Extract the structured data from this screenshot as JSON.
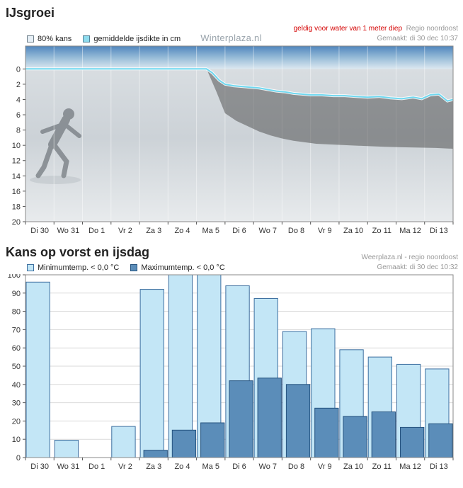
{
  "ice_chart": {
    "title": "IJsgroei",
    "watermark": "Winterplaza.nl",
    "notice": "geldig voor water van 1 meter diep",
    "region": "Regio noordoost",
    "made": "Gemaakt: di 30 dec 10:37",
    "legend": [
      {
        "label": "80% kans",
        "swatch": "#e6eff6",
        "border": "#6f7f8a"
      },
      {
        "label": "gemiddelde ijsdikte in cm",
        "swatch": "#8edcee",
        "border": "#558196"
      }
    ]
  },
  "frost_chart": {
    "title": "Kans op vorst en ijsdag",
    "source": "Weerplaza.nl - regio noordoost",
    "made": "Gemaakt: di 30 dec 10:32",
    "legend": [
      {
        "label": "Minimumtemp. < 0,0 °C",
        "swatch": "#c3e6f6",
        "border": "#3d6fa0"
      },
      {
        "label": "Maximumtemp. < 0,0 °C",
        "swatch": "#5b8db9",
        "border": "#24527e"
      }
    ]
  },
  "chart_data": [
    {
      "type": "line",
      "title": "IJsgroei",
      "note": "geldig voor water van 1 meter diep",
      "categories": [
        "Di 30",
        "Wo 31",
        "Do 1",
        "Vr 2",
        "Za 3",
        "Zo 4",
        "Ma 5",
        "Di 6",
        "Wo 7",
        "Do 8",
        "Vr 9",
        "Za 10",
        "Zo 11",
        "Ma 12",
        "Di 13"
      ],
      "ylim": [
        -3,
        20
      ],
      "y_ticks": [
        0,
        2,
        4,
        6,
        8,
        10,
        12,
        14,
        16,
        18,
        20
      ],
      "y_axis_inverted": true,
      "legend_position": "top",
      "series": [
        {
          "name": "gemiddelde ijsdikte in cm",
          "color": "#6fd8f0",
          "unit": "cm",
          "points": [
            [
              0,
              0
            ],
            [
              6.35,
              0
            ],
            [
              6.55,
              0.5
            ],
            [
              6.8,
              1.5
            ],
            [
              7.0,
              2.0
            ],
            [
              7.3,
              2.2
            ],
            [
              7.6,
              2.3
            ],
            [
              7.9,
              2.4
            ],
            [
              8.2,
              2.5
            ],
            [
              8.5,
              2.7
            ],
            [
              8.8,
              2.9
            ],
            [
              9.1,
              3.0
            ],
            [
              9.4,
              3.2
            ],
            [
              9.7,
              3.3
            ],
            [
              10.0,
              3.4
            ],
            [
              10.4,
              3.4
            ],
            [
              10.8,
              3.5
            ],
            [
              11.2,
              3.5
            ],
            [
              11.6,
              3.6
            ],
            [
              12.0,
              3.7
            ],
            [
              12.4,
              3.6
            ],
            [
              12.8,
              3.8
            ],
            [
              13.2,
              3.9
            ],
            [
              13.6,
              3.7
            ],
            [
              13.9,
              3.9
            ],
            [
              14.2,
              3.4
            ],
            [
              14.5,
              3.3
            ],
            [
              14.8,
              4.2
            ],
            [
              15,
              4.0
            ]
          ]
        },
        {
          "name": "80% kans",
          "fill": "rgba(72,72,72,0.5)",
          "unit": "cm",
          "points": [
            [
              6.35,
              0
            ],
            [
              6.7,
              3.0
            ],
            [
              7.0,
              5.8
            ],
            [
              7.4,
              6.8
            ],
            [
              7.8,
              7.5
            ],
            [
              8.2,
              8.2
            ],
            [
              8.6,
              8.7
            ],
            [
              9.0,
              9.1
            ],
            [
              9.4,
              9.4
            ],
            [
              9.8,
              9.6
            ],
            [
              10.2,
              9.8
            ],
            [
              10.8,
              9.9
            ],
            [
              11.4,
              10.0
            ],
            [
              12.0,
              10.1
            ],
            [
              12.6,
              10.2
            ],
            [
              13.2,
              10.25
            ],
            [
              13.8,
              10.3
            ],
            [
              14.4,
              10.35
            ],
            [
              15,
              10.45
            ]
          ]
        }
      ]
    },
    {
      "type": "bar",
      "title": "Kans op vorst en ijsdag",
      "categories": [
        "Di 30",
        "Wo 31",
        "Do 1",
        "Vr 2",
        "Za 3",
        "Zo 4",
        "Ma 5",
        "Di 6",
        "Wo 7",
        "Do 8",
        "Vr 9",
        "Za 10",
        "Zo 11",
        "Ma 12",
        "Di 13"
      ],
      "ylim": [
        0,
        100
      ],
      "y_ticks": [
        0,
        10,
        20,
        30,
        40,
        50,
        60,
        70,
        80,
        90,
        100
      ],
      "grid": "horizontal",
      "legend_position": "top-left",
      "series": [
        {
          "name": "Minimumtemp. < 0,0 °C",
          "color": "#c3e6f6",
          "border": "#3d6fa0",
          "values": [
            96,
            9.5,
            0,
            17,
            92,
            100,
            100,
            94,
            87,
            69,
            70.5,
            59,
            55,
            51,
            48.5
          ]
        },
        {
          "name": "Maximumtemp. < 0,0 °C",
          "color": "#5b8db9",
          "border": "#24527e",
          "values": [
            0,
            0,
            0,
            0,
            4,
            15,
            19,
            42,
            43.5,
            40,
            27,
            22.5,
            25,
            16.5,
            18.5
          ]
        }
      ]
    }
  ]
}
